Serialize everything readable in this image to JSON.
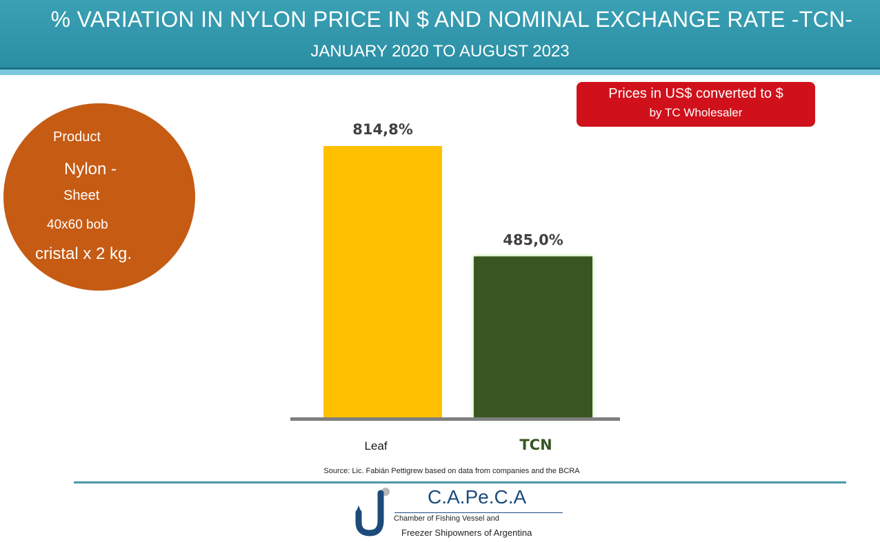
{
  "header": {
    "title": "% VARIATION IN NYLON PRICE IN $ AND NOMINAL EXCHANGE RATE -TCN-",
    "subtitle": "JANUARY 2020 TO AUGUST 2023"
  },
  "note": {
    "line1": "Prices in US$ converted to $",
    "line2": "by TC Wholesaler"
  },
  "product": {
    "label": "Product",
    "lines": [
      "Nylon -",
      "Sheet",
      "40x60 bob",
      "cristal x 2 kg."
    ]
  },
  "chart_data": {
    "type": "bar",
    "categories": [
      "Leaf",
      "TCN"
    ],
    "values": [
      814.8,
      485.0
    ],
    "data_labels": [
      "814,8%",
      "485,0%"
    ],
    "colors": [
      "#ffc000",
      "#375623"
    ],
    "category_label_colors": [
      "#1a1a1a",
      "#375623"
    ],
    "ylim": [
      0,
      900
    ],
    "grid": false,
    "legend": "none",
    "title": "",
    "xlabel": "",
    "ylabel": ""
  },
  "source": "Source: Lic. Fabián Pettigrew based on data from companies and the BCRA",
  "org": {
    "name": "C.A.Pe.C.A",
    "line1": "Chamber of Fishing Vessel and",
    "line2": "Freezer Shipowners of Argentina"
  }
}
